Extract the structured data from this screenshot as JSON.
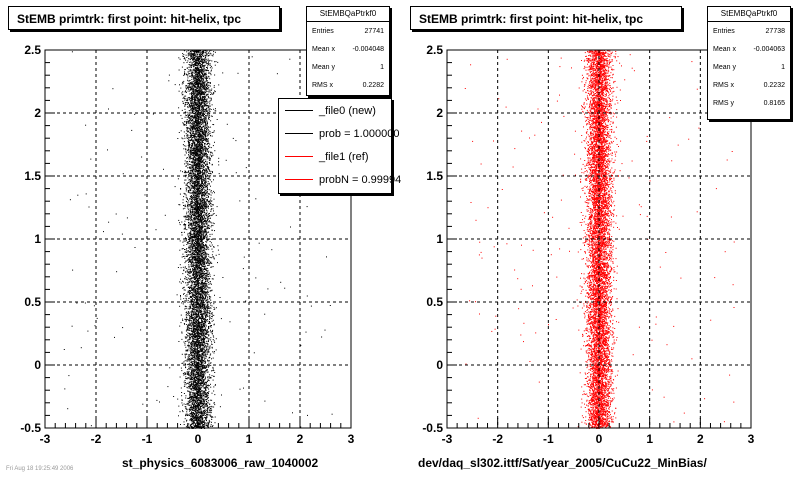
{
  "chart_data": [
    {
      "type": "scatter",
      "title": "StEMB primtrk: first point: hit-helix, tpc",
      "xlabel": "st_physics_6083006_raw_1040002",
      "ylabel": "",
      "xlim": [
        -3,
        3
      ],
      "ylim": [
        -0.5,
        2.5
      ],
      "xticks": [
        "-3",
        "-2",
        "-1",
        "0",
        "1",
        "2",
        "3"
      ],
      "yticks": [
        "-0.5",
        "0",
        "0.5",
        "1",
        "1.5",
        "2",
        "2.5"
      ],
      "grid": true,
      "marker_color": "#000000",
      "distribution": {
        "x_mean": -0.004048,
        "x_rms": 0.2282,
        "y_range": [
          -0.5,
          2.5
        ],
        "entries": 27741
      },
      "stats": {
        "name": "StEMBQaPtrkf0",
        "rows": [
          {
            "label": "Entries",
            "value": "27741"
          },
          {
            "label": "Mean x",
            "value": "-0.004048"
          },
          {
            "label": "Mean y",
            "value": "1"
          },
          {
            "label": "RMS x",
            "value": "0.2282"
          }
        ]
      },
      "legend": {
        "placement": "top-right",
        "entries": [
          {
            "label": "_file0 (new)",
            "color": "#000000"
          },
          {
            "label": "prob = 1.000000",
            "color": "#000000"
          },
          {
            "label": "_file1 (ref)",
            "color": "#ff0000"
          },
          {
            "label": "probN = 0.99994",
            "color": "#ff0000"
          }
        ]
      }
    },
    {
      "type": "scatter",
      "title": "StEMB primtrk: first point: hit-helix, tpc",
      "xlabel": "dev/daq_sl302.ittf/Sat/year_2005/CuCu22_MinBias/",
      "ylabel": "",
      "xlim": [
        -3,
        3
      ],
      "ylim": [
        -0.5,
        2.5
      ],
      "xticks": [
        "-3",
        "-2",
        "-1",
        "0",
        "1",
        "2",
        "3"
      ],
      "yticks": [
        "-0.5",
        "0",
        "0.5",
        "1",
        "1.5",
        "2",
        "2.5"
      ],
      "grid": true,
      "marker_color": "#ff0000",
      "distribution": {
        "x_mean": -0.004063,
        "x_rms": 0.2232,
        "y_range": [
          -0.5,
          2.5
        ],
        "entries": 27738
      },
      "stats": {
        "name": "StEMBQaPtrkf0",
        "rows": [
          {
            "label": "Entries",
            "value": "27738"
          },
          {
            "label": "Mean x",
            "value": "-0.004063"
          },
          {
            "label": "Mean y",
            "value": "1"
          },
          {
            "label": "RMS x",
            "value": "0.2232"
          },
          {
            "label": "RMS y",
            "value": "0.8165"
          }
        ]
      }
    }
  ],
  "footer_text": "Fri Aug 18 19:25:49 2006"
}
